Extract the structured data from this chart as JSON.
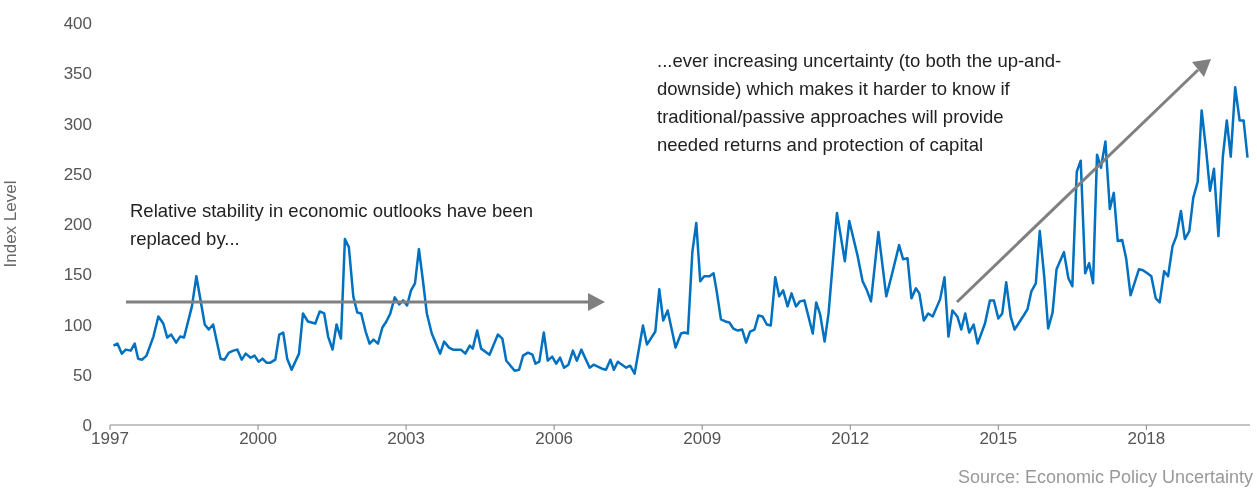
{
  "chart_data": {
    "type": "line",
    "ylabel": "Index Level",
    "xlim": [
      1997,
      2020.1
    ],
    "xticks": [
      1997,
      2000,
      2003,
      2006,
      2009,
      2012,
      2015,
      2018
    ],
    "ylim": [
      0,
      400
    ],
    "yticks": [
      0,
      50,
      100,
      150,
      200,
      250,
      300,
      350,
      400
    ],
    "marker": "none",
    "line_style": "solid",
    "annotations": [
      "Relative stability in economic outlooks have been replaced by...",
      "...ever increasing uncertainty (to both the up-and-downside) which makes it harder to know if traditional/passive approaches will provide needed returns and protection of capital",
      "Source: Economic Policy Uncertainty"
    ],
    "x": [
      1997.07,
      1997.15,
      1997.24,
      1997.32,
      1997.42,
      1997.5,
      1997.57,
      1997.65,
      1997.74,
      1997.88,
      1997.98,
      1998.08,
      1998.16,
      1998.24,
      1998.34,
      1998.42,
      1998.5,
      1998.66,
      1998.75,
      1998.92,
      1999.0,
      1999.09,
      1999.24,
      1999.32,
      1999.41,
      1999.5,
      1999.58,
      1999.67,
      1999.75,
      1999.85,
      1999.93,
      2000.01,
      2000.09,
      2000.17,
      2000.25,
      2000.35,
      2000.43,
      2000.51,
      2000.59,
      2000.68,
      2000.83,
      2000.91,
      2001.01,
      2001.16,
      2001.25,
      2001.34,
      2001.42,
      2001.51,
      2001.59,
      2001.68,
      2001.76,
      2001.84,
      2001.93,
      2002.01,
      2002.09,
      2002.18,
      2002.26,
      2002.34,
      2002.43,
      2002.52,
      2002.6,
      2002.68,
      2002.77,
      2002.86,
      2002.94,
      2003.02,
      2003.1,
      2003.18,
      2003.26,
      2003.34,
      2003.42,
      2003.52,
      2003.69,
      2003.77,
      2003.87,
      2003.95,
      2004.11,
      2004.2,
      2004.29,
      2004.35,
      2004.44,
      2004.52,
      2004.69,
      2004.86,
      2004.95,
      2005.03,
      2005.2,
      2005.29,
      2005.37,
      2005.47,
      2005.56,
      2005.62,
      2005.7,
      2005.79,
      2005.87,
      2005.96,
      2006.04,
      2006.12,
      2006.2,
      2006.29,
      2006.38,
      2006.46,
      2006.55,
      2006.72,
      2006.8,
      2006.97,
      2007.05,
      2007.14,
      2007.21,
      2007.29,
      2007.46,
      2007.54,
      2007.63,
      2007.8,
      2007.88,
      2008.05,
      2008.13,
      2008.21,
      2008.3,
      2008.46,
      2008.57,
      2008.64,
      2008.71,
      2008.8,
      2008.88,
      2008.96,
      2009.04,
      2009.15,
      2009.23,
      2009.29,
      2009.38,
      2009.47,
      2009.55,
      2009.63,
      2009.72,
      2009.81,
      2009.89,
      2009.97,
      2010.06,
      2010.14,
      2010.22,
      2010.31,
      2010.39,
      2010.48,
      2010.56,
      2010.64,
      2010.73,
      2010.81,
      2010.9,
      2010.98,
      2011.07,
      2011.24,
      2011.31,
      2011.39,
      2011.48,
      2011.56,
      2011.73,
      2011.89,
      2011.98,
      2012.15,
      2012.25,
      2012.33,
      2012.42,
      2012.57,
      2012.73,
      2012.84,
      2012.99,
      2013.07,
      2013.16,
      2013.24,
      2013.33,
      2013.4,
      2013.49,
      2013.58,
      2013.67,
      2013.82,
      2013.91,
      2013.99,
      2014.07,
      2014.17,
      2014.25,
      2014.33,
      2014.41,
      2014.5,
      2014.58,
      2014.73,
      2014.83,
      2014.91,
      2015.0,
      2015.08,
      2015.16,
      2015.25,
      2015.33,
      2015.5,
      2015.59,
      2015.67,
      2015.76,
      2015.84,
      2015.93,
      2016.01,
      2016.1,
      2016.18,
      2016.33,
      2016.42,
      2016.5,
      2016.59,
      2016.67,
      2016.76,
      2016.84,
      2016.92,
      2017.0,
      2017.08,
      2017.17,
      2017.26,
      2017.34,
      2017.42,
      2017.51,
      2017.59,
      2017.68,
      2017.85,
      2017.93,
      2018.02,
      2018.1,
      2018.19,
      2018.27,
      2018.36,
      2018.44,
      2018.53,
      2018.61,
      2018.7,
      2018.78,
      2018.87,
      2018.95,
      2019.04,
      2019.12,
      2019.21,
      2019.29,
      2019.37,
      2019.46,
      2019.55,
      2019.63,
      2019.71,
      2019.8,
      2019.89,
      2019.97,
      2020.05
    ],
    "series": [
      {
        "color": "#0070c0",
        "values": [
          79,
          81,
          71,
          75,
          74,
          81,
          66,
          65,
          69,
          88,
          108,
          101,
          87,
          90,
          82,
          88,
          87,
          118,
          148,
          100,
          95,
          100,
          66,
          65,
          72,
          74,
          75,
          65,
          71,
          67,
          69,
          63,
          66,
          62,
          62,
          65,
          90,
          92,
          66,
          55,
          71,
          111,
          103,
          101,
          113,
          111,
          88,
          75,
          100,
          86,
          185,
          177,
          128,
          112,
          111,
          93,
          81,
          85,
          81,
          97,
          103,
          111,
          127,
          120,
          124,
          119,
          134,
          141,
          175,
          144,
          111,
          91,
          71,
          83,
          77,
          75,
          75,
          71,
          79,
          76,
          94,
          76,
          70,
          90,
          86,
          64,
          54,
          55,
          69,
          72,
          70,
          61,
          63,
          92,
          64,
          68,
          61,
          67,
          57,
          60,
          74,
          64,
          75,
          57,
          60,
          56,
          55,
          65,
          55,
          63,
          57,
          59,
          51,
          99,
          80,
          93,
          135,
          104,
          114,
          77,
          91,
          92,
          91,
          172,
          201,
          143,
          148,
          148,
          151,
          134,
          105,
          103,
          102,
          96,
          94,
          95,
          82,
          93,
          95,
          109,
          108,
          100,
          99,
          147,
          128,
          134,
          118,
          131,
          118,
          123,
          124,
          91,
          122,
          110,
          83,
          111,
          211,
          163,
          203,
          168,
          143,
          135,
          123,
          192,
          128,
          149,
          179,
          165,
          166,
          126,
          136,
          131,
          104,
          111,
          108,
          125,
          147,
          88,
          114,
          108,
          95,
          111,
          92,
          100,
          81,
          101,
          124,
          124,
          106,
          111,
          142,
          108,
          95,
          108,
          115,
          133,
          141,
          193,
          148,
          96,
          112,
          155,
          172,
          146,
          138,
          252,
          263,
          151,
          161,
          141,
          269,
          256,
          282,
          215,
          231,
          183,
          184,
          166,
          129,
          155,
          154,
          151,
          148,
          126,
          122,
          153,
          148,
          178,
          188,
          213,
          185,
          193,
          226,
          242,
          313,
          274,
          233,
          255,
          188,
          267,
          303,
          267,
          336,
          303,
          303,
          266
        ]
      }
    ]
  }
}
